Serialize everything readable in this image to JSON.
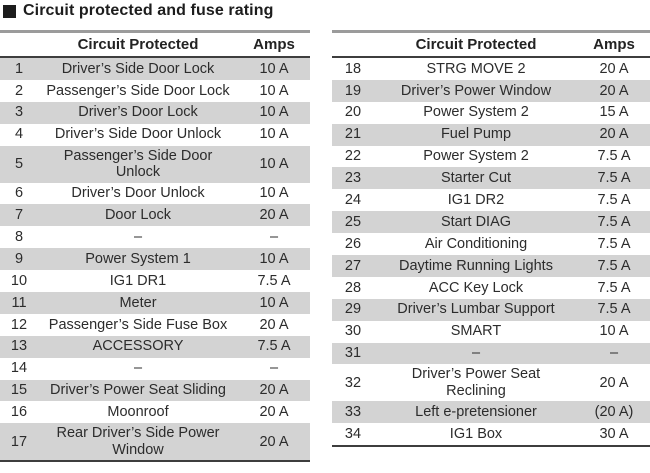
{
  "title": "Circuit protected and fuse rating",
  "tables": [
    {
      "headers": {
        "num": "",
        "circuit": "Circuit Protected",
        "amps": "Amps"
      },
      "rows": [
        {
          "num": "1",
          "circuit": "Driver’s Side Door Lock",
          "amps": "10 A"
        },
        {
          "num": "2",
          "circuit": "Passenger’s Side Door Lock",
          "amps": "10 A"
        },
        {
          "num": "3",
          "circuit": "Driver’s Door Lock",
          "amps": "10 A"
        },
        {
          "num": "4",
          "circuit": "Driver’s Side Door Unlock",
          "amps": "10 A"
        },
        {
          "num": "5",
          "circuit": "Passenger’s Side Door\nUnlock",
          "amps": "10 A"
        },
        {
          "num": "6",
          "circuit": "Driver’s Door Unlock",
          "amps": "10 A"
        },
        {
          "num": "7",
          "circuit": "Door Lock",
          "amps": "20 A"
        },
        {
          "num": "8",
          "circuit": "–",
          "amps": "–"
        },
        {
          "num": "9",
          "circuit": "Power System 1",
          "amps": "10 A"
        },
        {
          "num": "10",
          "circuit": "IG1 DR1",
          "amps": "7.5 A"
        },
        {
          "num": "11",
          "circuit": "Meter",
          "amps": "10 A"
        },
        {
          "num": "12",
          "circuit": "Passenger’s Side Fuse Box",
          "amps": "20 A"
        },
        {
          "num": "13",
          "circuit": "ACCESSORY",
          "amps": "7.5 A"
        },
        {
          "num": "14",
          "circuit": "–",
          "amps": "–"
        },
        {
          "num": "15",
          "circuit": "Driver’s Power Seat Sliding",
          "amps": "20 A"
        },
        {
          "num": "16",
          "circuit": "Moonroof",
          "amps": "20 A"
        },
        {
          "num": "17",
          "circuit": "Rear Driver’s Side Power\nWindow",
          "amps": "20 A"
        }
      ]
    },
    {
      "headers": {
        "num": "",
        "circuit": "Circuit Protected",
        "amps": "Amps"
      },
      "rows": [
        {
          "num": "18",
          "circuit": "STRG MOVE 2",
          "amps": "20 A"
        },
        {
          "num": "19",
          "circuit": "Driver’s Power Window",
          "amps": "20 A"
        },
        {
          "num": "20",
          "circuit": "Power System 2",
          "amps": "15 A"
        },
        {
          "num": "21",
          "circuit": "Fuel Pump",
          "amps": "20 A"
        },
        {
          "num": "22",
          "circuit": "Power System 2",
          "amps": "7.5 A"
        },
        {
          "num": "23",
          "circuit": "Starter Cut",
          "amps": "7.5 A"
        },
        {
          "num": "24",
          "circuit": "IG1 DR2",
          "amps": "7.5 A"
        },
        {
          "num": "25",
          "circuit": "Start DIAG",
          "amps": "7.5 A"
        },
        {
          "num": "26",
          "circuit": "Air Conditioning",
          "amps": "7.5 A"
        },
        {
          "num": "27",
          "circuit": "Daytime Running Lights",
          "amps": "7.5 A"
        },
        {
          "num": "28",
          "circuit": "ACC Key Lock",
          "amps": "7.5 A"
        },
        {
          "num": "29",
          "circuit": "Driver’s Lumbar Support",
          "amps": "7.5 A"
        },
        {
          "num": "30",
          "circuit": "SMART",
          "amps": "10 A"
        },
        {
          "num": "31",
          "circuit": "–",
          "amps": "–"
        },
        {
          "num": "32",
          "circuit": "Driver’s Power Seat\nReclining",
          "amps": "20 A"
        },
        {
          "num": "33",
          "circuit": "Left e-pretensioner",
          "amps": "(20 A)"
        },
        {
          "num": "34",
          "circuit": "IG1 Box",
          "amps": "30 A"
        }
      ]
    }
  ]
}
